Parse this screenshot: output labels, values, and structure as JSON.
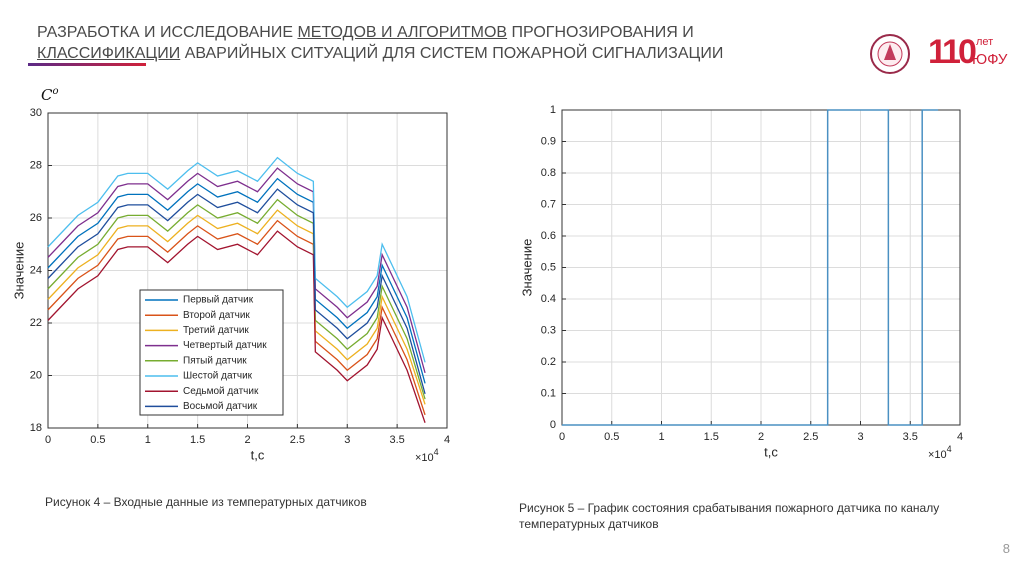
{
  "header": {
    "title_parts": [
      "РАЗРАБОТКА И ИССЛЕДОВАНИЕ ",
      "МЕТОДОВ И АЛГОРИТМОВ",
      " ПРОГНОЗИРОВАНИЯ И",
      "КЛАССИФИКАЦИИ",
      " АВАРИЙНЫХ СИТУАЦИЙ ДЛЯ СИСТЕМ ПОЖАРНОЙ СИГНАЛИЗАЦИИ"
    ]
  },
  "logo": {
    "mark": "110",
    "years": "лет",
    "name": "ЮФУ"
  },
  "captions": [
    "Рисунок 4 – Входные данные из температурных датчиков",
    "Рисунок 5 – График состояния срабатывания пожарного датчика по каналу температурных датчиков"
  ],
  "page_number": "8",
  "chart_data": [
    {
      "type": "line",
      "y_unit": "C",
      "y_unit_sup": "o",
      "y_label": "Значение",
      "x_label": "t,c",
      "x_multiplier": "×10",
      "x_multiplier_exp": "4",
      "xlim": [
        0,
        4
      ],
      "ylim": [
        18,
        30
      ],
      "xticks": [
        0,
        0.5,
        1,
        1.5,
        2,
        2.5,
        3,
        3.5,
        4
      ],
      "yticks": [
        18,
        20,
        22,
        24,
        26,
        28,
        30
      ],
      "grid": true,
      "legend": "lower center",
      "x": [
        0,
        0.1,
        0.3,
        0.5,
        0.7,
        0.8,
        1.0,
        1.2,
        1.4,
        1.5,
        1.7,
        1.9,
        2.1,
        2.3,
        2.5,
        2.66,
        2.68,
        2.9,
        3.0,
        3.2,
        3.3,
        3.35,
        3.6,
        3.78
      ],
      "series": [
        {
          "name": "Первый датчик",
          "color": "#0072bd",
          "values": [
            24.1,
            24.5,
            25.3,
            25.8,
            26.8,
            26.9,
            26.9,
            26.3,
            27.0,
            27.3,
            26.8,
            27.0,
            26.6,
            27.5,
            26.9,
            26.6,
            22.9,
            22.2,
            21.8,
            22.4,
            23.0,
            24.2,
            22.2,
            19.7
          ]
        },
        {
          "name": "Второй датчик",
          "color": "#d95319",
          "values": [
            22.5,
            22.9,
            23.7,
            24.2,
            25.2,
            25.3,
            25.3,
            24.7,
            25.4,
            25.7,
            25.2,
            25.4,
            25.0,
            25.9,
            25.3,
            25.0,
            21.3,
            20.6,
            20.2,
            20.8,
            21.4,
            22.6,
            20.6,
            18.5
          ]
        },
        {
          "name": "Третий датчик",
          "color": "#edb120",
          "values": [
            22.9,
            23.3,
            24.1,
            24.6,
            25.6,
            25.7,
            25.7,
            25.1,
            25.8,
            26.1,
            25.6,
            25.8,
            25.4,
            26.3,
            25.7,
            25.4,
            21.7,
            21.0,
            20.6,
            21.2,
            21.8,
            23.0,
            21.0,
            18.9
          ]
        },
        {
          "name": "Четвертый датчик",
          "color": "#7e2f8e",
          "values": [
            24.5,
            24.9,
            25.7,
            26.2,
            27.2,
            27.3,
            27.3,
            26.7,
            27.4,
            27.7,
            27.2,
            27.4,
            27.0,
            27.9,
            27.3,
            27.0,
            23.3,
            22.6,
            22.2,
            22.8,
            23.4,
            24.6,
            22.6,
            20.1
          ]
        },
        {
          "name": "Пятый датчик",
          "color": "#77ac30",
          "values": [
            23.3,
            23.7,
            24.5,
            25.0,
            26.0,
            26.1,
            26.1,
            25.5,
            26.2,
            26.5,
            26.0,
            26.2,
            25.8,
            26.7,
            26.1,
            25.8,
            22.1,
            21.4,
            21.0,
            21.6,
            22.2,
            23.4,
            21.4,
            19.1
          ]
        },
        {
          "name": "Шестой датчик",
          "color": "#4dbeee",
          "values": [
            24.9,
            25.3,
            26.1,
            26.6,
            27.6,
            27.7,
            27.7,
            27.1,
            27.8,
            28.1,
            27.6,
            27.8,
            27.4,
            28.3,
            27.7,
            27.4,
            23.7,
            23.0,
            22.6,
            23.2,
            23.8,
            25.0,
            23.0,
            20.5
          ]
        },
        {
          "name": "Седьмой датчик",
          "color": "#a2142f",
          "values": [
            22.1,
            22.5,
            23.3,
            23.8,
            24.8,
            24.9,
            24.9,
            24.3,
            25.0,
            25.3,
            24.8,
            25.0,
            24.6,
            25.5,
            24.9,
            24.6,
            20.9,
            20.2,
            19.8,
            20.4,
            21.0,
            22.2,
            20.2,
            18.2
          ]
        },
        {
          "name": "Восьмой датчик",
          "color": "#1f4e9c",
          "values": [
            23.7,
            24.1,
            24.9,
            25.4,
            26.4,
            26.5,
            26.5,
            25.9,
            26.6,
            26.9,
            26.4,
            26.6,
            26.2,
            27.1,
            26.5,
            26.2,
            22.5,
            21.8,
            21.4,
            22.0,
            22.6,
            23.8,
            21.8,
            19.3
          ]
        }
      ]
    },
    {
      "type": "line",
      "y_label": "Значение",
      "x_label": "t,c",
      "x_multiplier": "×10",
      "x_multiplier_exp": "4",
      "xlim": [
        0,
        4
      ],
      "ylim": [
        0,
        1
      ],
      "xticks": [
        0,
        0.5,
        1,
        1.5,
        2,
        2.5,
        3,
        3.5,
        4
      ],
      "yticks": [
        0,
        0.1,
        0.2,
        0.3,
        0.4,
        0.5,
        0.6,
        0.7,
        0.8,
        0.9,
        1
      ],
      "grid": true,
      "color": "#4a90c2",
      "x": [
        0,
        2.67,
        2.67,
        3.28,
        3.28,
        3.62,
        3.62,
        3.78
      ],
      "values": [
        0,
        0,
        1,
        1,
        0,
        0,
        1,
        1
      ]
    }
  ]
}
